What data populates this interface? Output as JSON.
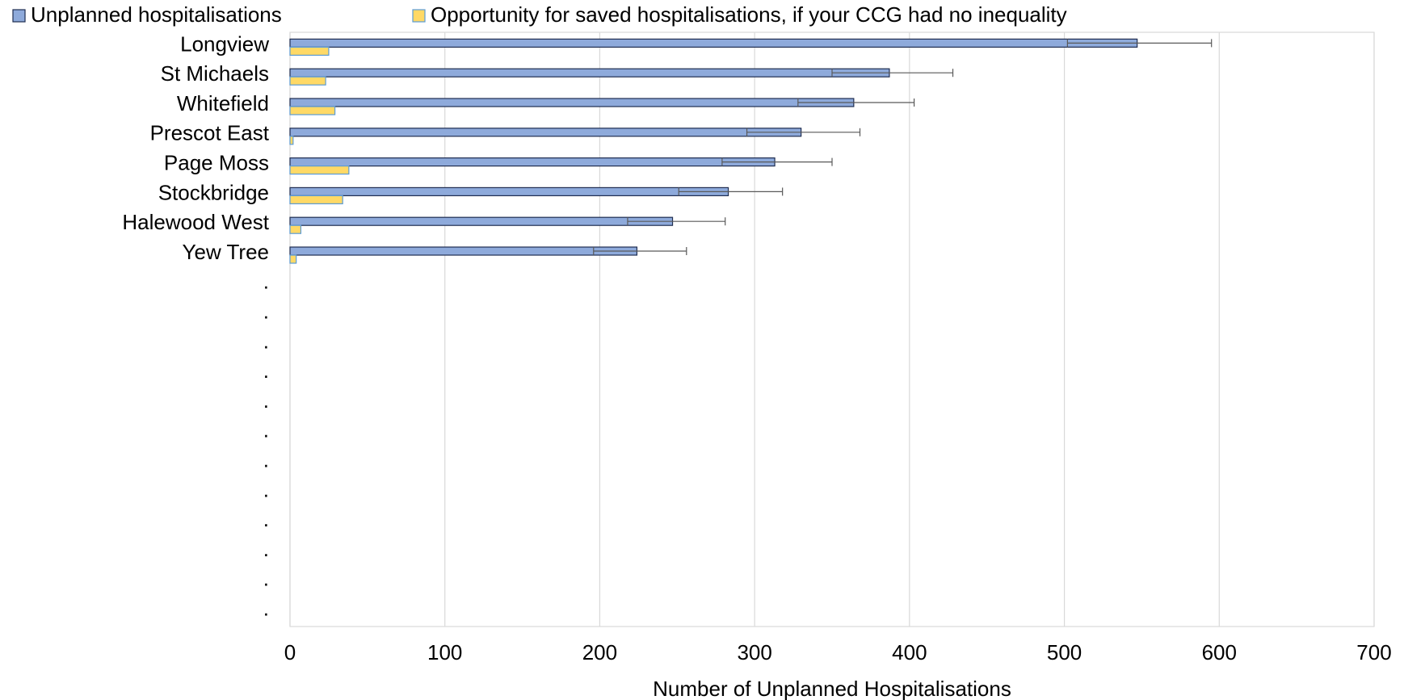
{
  "chart_data": {
    "type": "bar",
    "orientation": "horizontal",
    "x_label": "Number of Unplanned Hospitalisations",
    "categories": [
      "Longview",
      "St Michaels",
      "Whitefield",
      "Prescot East",
      "Page Moss",
      "Stockbridge",
      "Halewood West",
      "Yew Tree",
      ".",
      ".",
      ".",
      ".",
      ".",
      ".",
      ".",
      ".",
      ".",
      ".",
      ".",
      "."
    ],
    "series": [
      {
        "name": "Unplanned hospitalisations",
        "color": "#8eaadb",
        "edge_color": "#1f2d50",
        "values": [
          547,
          387,
          364,
          330,
          313,
          283,
          247,
          224,
          null,
          null,
          null,
          null,
          null,
          null,
          null,
          null,
          null,
          null,
          null,
          null
        ],
        "errors_lower": [
          502,
          350,
          328,
          295,
          279,
          251,
          218,
          196,
          null,
          null,
          null,
          null,
          null,
          null,
          null,
          null,
          null,
          null,
          null,
          null
        ],
        "errors_upper": [
          595,
          428,
          403,
          368,
          350,
          318,
          281,
          256,
          null,
          null,
          null,
          null,
          null,
          null,
          null,
          null,
          null,
          null,
          null,
          null
        ]
      },
      {
        "name": "Opportunity for saved hospitalisations, if your CCG had no inequality",
        "color": "#ffd966",
        "edge_color": "#5b9bd5",
        "values": [
          25,
          23,
          29,
          2,
          38,
          34,
          7,
          4,
          null,
          null,
          null,
          null,
          null,
          null,
          null,
          null,
          null,
          null,
          null,
          null
        ]
      }
    ],
    "xlim": [
      0,
      700
    ],
    "xticks": [
      0,
      100,
      200,
      300,
      400,
      500,
      600,
      700
    ],
    "grid": true,
    "legend": "top-left"
  }
}
